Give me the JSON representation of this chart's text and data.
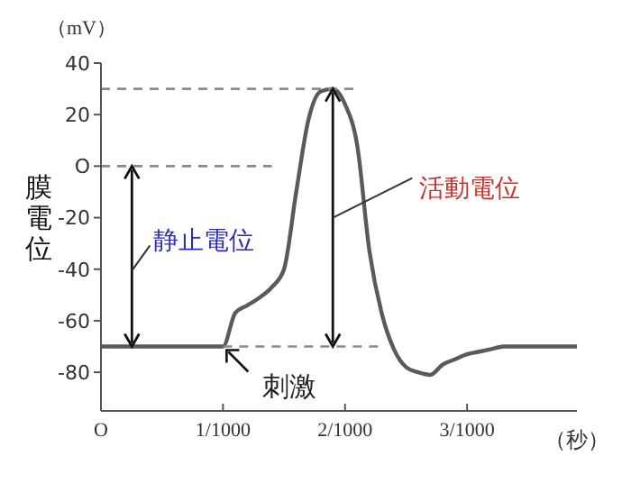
{
  "chart_data": {
    "type": "line",
    "xlabel": "（秒）",
    "ylabel": "膜電位",
    "annotations": [
      "静止電位",
      "活動電位",
      {
        "text": "刺激",
        "x": "1/1000",
        "y": -70
      },
      "（mV）"
    ],
    "categories": [
      "O",
      null,
      null,
      null,
      null,
      null,
      null,
      null,
      null,
      null,
      "1/1000",
      null,
      null,
      null,
      null,
      null,
      null,
      null,
      null,
      null,
      "2/1000",
      null,
      null,
      null,
      null,
      null,
      null,
      null,
      null,
      null,
      "3/1000",
      null,
      null,
      null,
      null,
      null,
      null,
      null,
      null,
      null
    ],
    "ylim": [
      -95,
      40
    ],
    "yticks": [
      40,
      20,
      {
        "value": 0,
        "label": "O"
      },
      -20,
      -40,
      -60,
      -80
    ],
    "marker": "none",
    "series": [
      {
        "color": "#5a5a5a",
        "line_style": "solid",
        "values": [
          -70,
          -70,
          -70,
          -70,
          -70,
          -70,
          -70,
          -70,
          -70,
          -70,
          -70,
          -57,
          -54,
          -51,
          -47,
          -40,
          -10,
          18,
          29,
          30,
          24,
          8,
          -33,
          -57,
          -71,
          -78,
          -80,
          -81,
          -77,
          -75,
          -73,
          -72,
          -71,
          -70,
          -70,
          -70,
          -70,
          -70,
          -70,
          -70
        ]
      },
      {
        "color": "#8a8a8a",
        "line_style": "dashed",
        "values": [
          30,
          30,
          30,
          30,
          30,
          30,
          30,
          30,
          30,
          30,
          30,
          30,
          30,
          30,
          30,
          30,
          30,
          30,
          30,
          30,
          30,
          30,
          null,
          null,
          null,
          null,
          null,
          null,
          null,
          null,
          null,
          null,
          null,
          null,
          null,
          null,
          null,
          null,
          null,
          null
        ]
      },
      {
        "color": "#8a8a8a",
        "line_style": "dashed",
        "values": [
          0,
          0,
          0,
          0,
          0,
          0,
          0,
          0,
          0,
          0,
          0,
          0,
          0,
          0,
          0,
          null,
          null,
          null,
          null,
          null,
          null,
          null,
          null,
          null,
          null,
          null,
          null,
          null,
          null,
          null,
          null,
          null,
          null,
          null,
          null,
          null,
          null,
          null,
          null,
          null
        ]
      },
      {
        "color": "#8a8a8a",
        "line_style": "dashed",
        "values": [
          null,
          null,
          null,
          null,
          null,
          null,
          null,
          null,
          null,
          null,
          -70,
          -70,
          -70,
          -70,
          -70,
          -70,
          -70,
          -70,
          -70,
          -70,
          -70,
          -70,
          -70,
          -70,
          null,
          null,
          null,
          null,
          null,
          null,
          null,
          null,
          null,
          null,
          null,
          null,
          null,
          null,
          null,
          null
        ]
      }
    ]
  }
}
